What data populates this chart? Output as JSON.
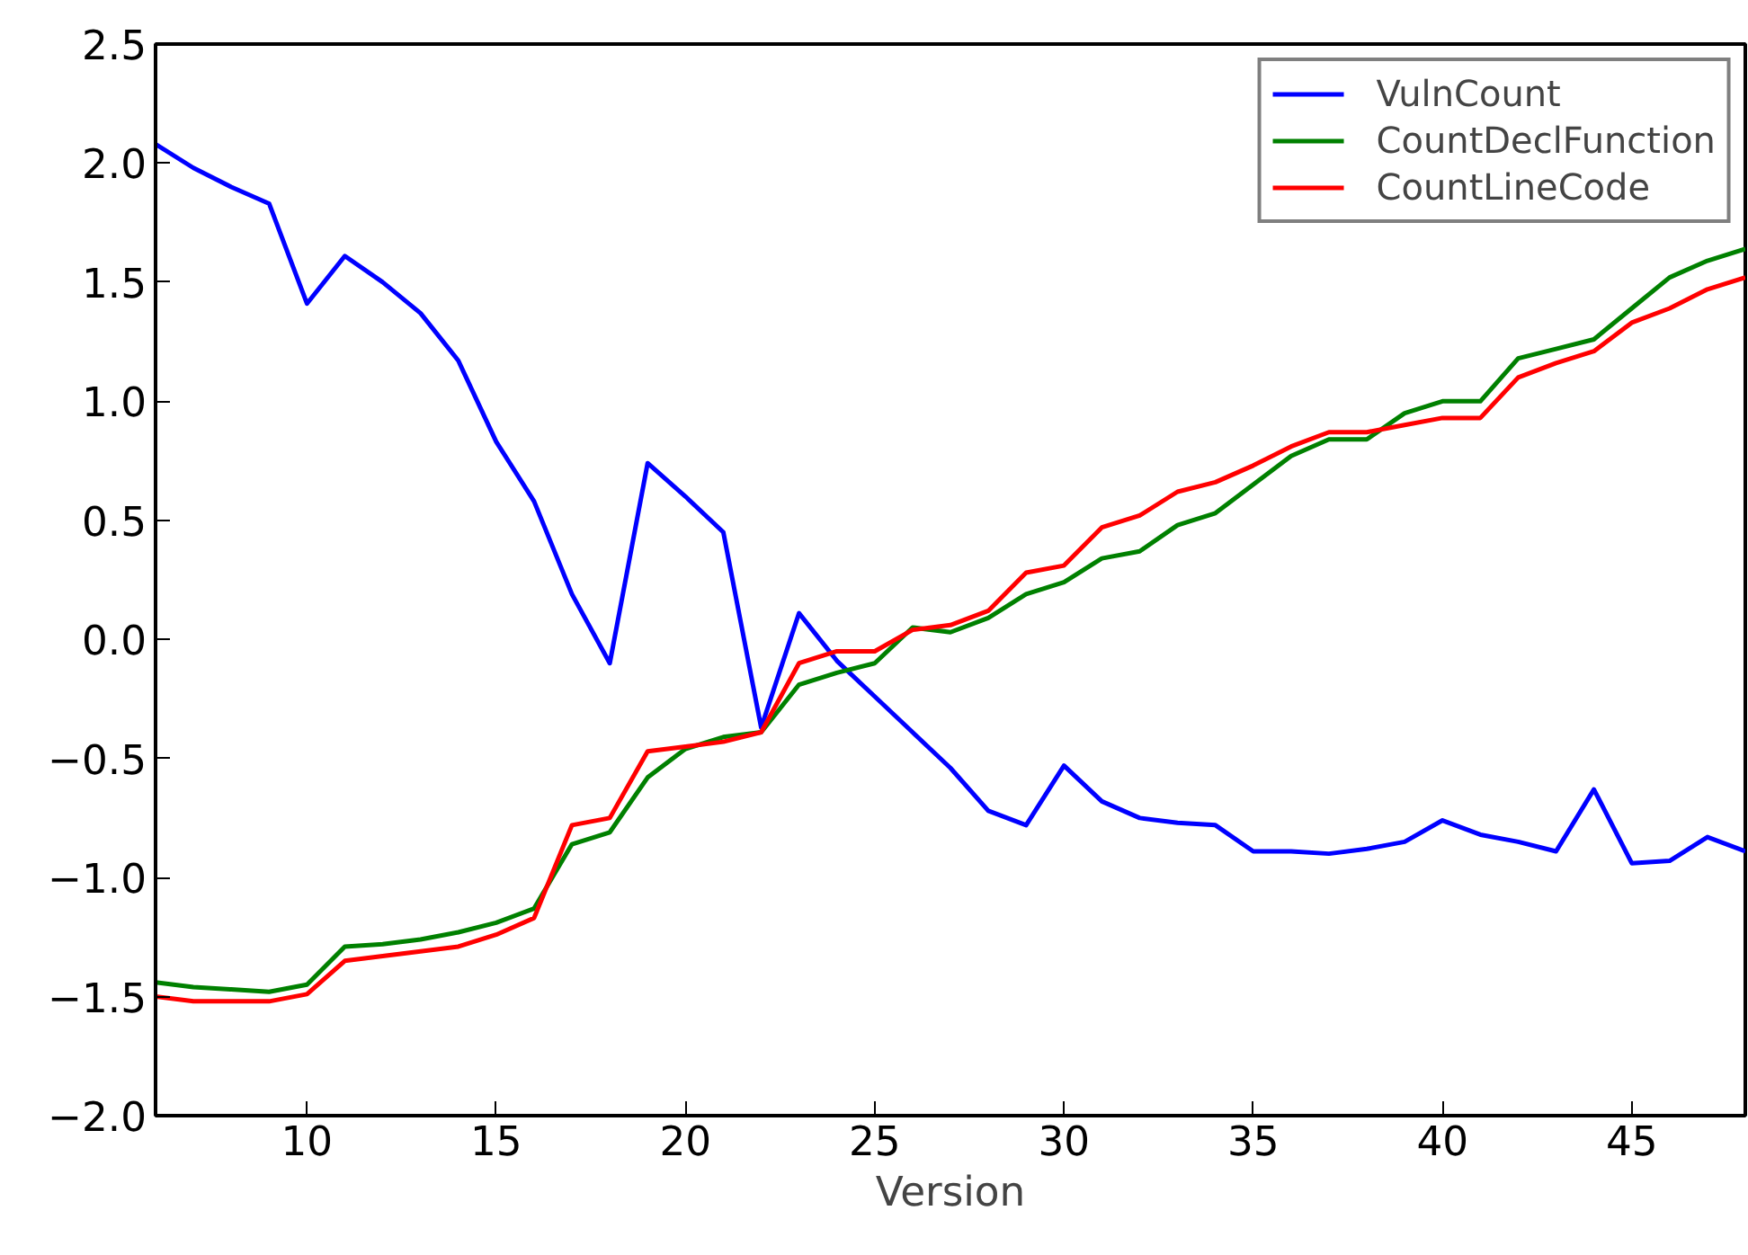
{
  "chart_data": {
    "type": "line",
    "xlabel": "Version",
    "x": [
      6,
      7,
      8,
      9,
      10,
      11,
      12,
      13,
      14,
      15,
      16,
      17,
      18,
      19,
      20,
      21,
      22,
      23,
      24,
      25,
      26,
      27,
      28,
      29,
      30,
      31,
      32,
      33,
      34,
      35,
      36,
      37,
      38,
      39,
      40,
      41,
      42,
      43,
      44,
      45,
      46,
      47,
      48
    ],
    "series": [
      {
        "name": "VulnCount",
        "color": "#0000ff",
        "values": [
          2.08,
          1.98,
          1.9,
          1.83,
          1.41,
          1.61,
          1.5,
          1.37,
          1.17,
          0.83,
          0.58,
          0.19,
          -0.1,
          0.74,
          0.6,
          0.45,
          -0.37,
          0.11,
          -0.09,
          -0.24,
          -0.39,
          -0.54,
          -0.72,
          -0.78,
          -0.53,
          -0.68,
          -0.75,
          -0.77,
          -0.78,
          -0.89,
          -0.89,
          -0.9,
          -0.88,
          -0.85,
          -0.76,
          -0.82,
          -0.85,
          -0.89,
          -0.63,
          -0.94,
          -0.93,
          -0.83,
          -0.89
        ]
      },
      {
        "name": "CountDeclFunction",
        "color": "#008000",
        "values": [
          -1.44,
          -1.46,
          -1.47,
          -1.48,
          -1.45,
          -1.29,
          -1.28,
          -1.26,
          -1.23,
          -1.19,
          -1.13,
          -0.86,
          -0.81,
          -0.58,
          -0.46,
          -0.41,
          -0.39,
          -0.19,
          -0.14,
          -0.1,
          0.05,
          0.03,
          0.09,
          0.19,
          0.24,
          0.34,
          0.37,
          0.48,
          0.53,
          0.65,
          0.77,
          0.84,
          0.84,
          0.95,
          1.0,
          1.0,
          1.18,
          1.22,
          1.26,
          1.39,
          1.52,
          1.59,
          1.64
        ]
      },
      {
        "name": "CountLineCode",
        "color": "#ff0000",
        "values": [
          -1.5,
          -1.52,
          -1.52,
          -1.52,
          -1.49,
          -1.35,
          -1.33,
          -1.31,
          -1.29,
          -1.24,
          -1.17,
          -0.78,
          -0.75,
          -0.47,
          -0.45,
          -0.43,
          -0.39,
          -0.1,
          -0.05,
          -0.05,
          0.04,
          0.06,
          0.12,
          0.28,
          0.31,
          0.47,
          0.52,
          0.62,
          0.66,
          0.73,
          0.81,
          0.87,
          0.87,
          0.9,
          0.93,
          0.93,
          1.1,
          1.16,
          1.21,
          1.33,
          1.39,
          1.47,
          1.52
        ]
      }
    ],
    "xlim": [
      6,
      48
    ],
    "ylim": [
      -2.0,
      2.5
    ],
    "xticks": [
      10,
      15,
      20,
      25,
      30,
      35,
      40,
      45
    ],
    "yticks": [
      {
        "value": -2.0,
        "label": "−2.0"
      },
      {
        "value": -1.5,
        "label": "−1.5"
      },
      {
        "value": -1.0,
        "label": "−1.0"
      },
      {
        "value": -0.5,
        "label": "−0.5"
      },
      {
        "value": 0.0,
        "label": "0.0"
      },
      {
        "value": 0.5,
        "label": "0.5"
      },
      {
        "value": 1.0,
        "label": "1.0"
      },
      {
        "value": 1.5,
        "label": "1.5"
      },
      {
        "value": 2.0,
        "label": "2.0"
      },
      {
        "value": 2.5,
        "label": "2.5"
      }
    ],
    "legend": "top right",
    "grid": false,
    "marker": "none",
    "line_style": "solid"
  }
}
